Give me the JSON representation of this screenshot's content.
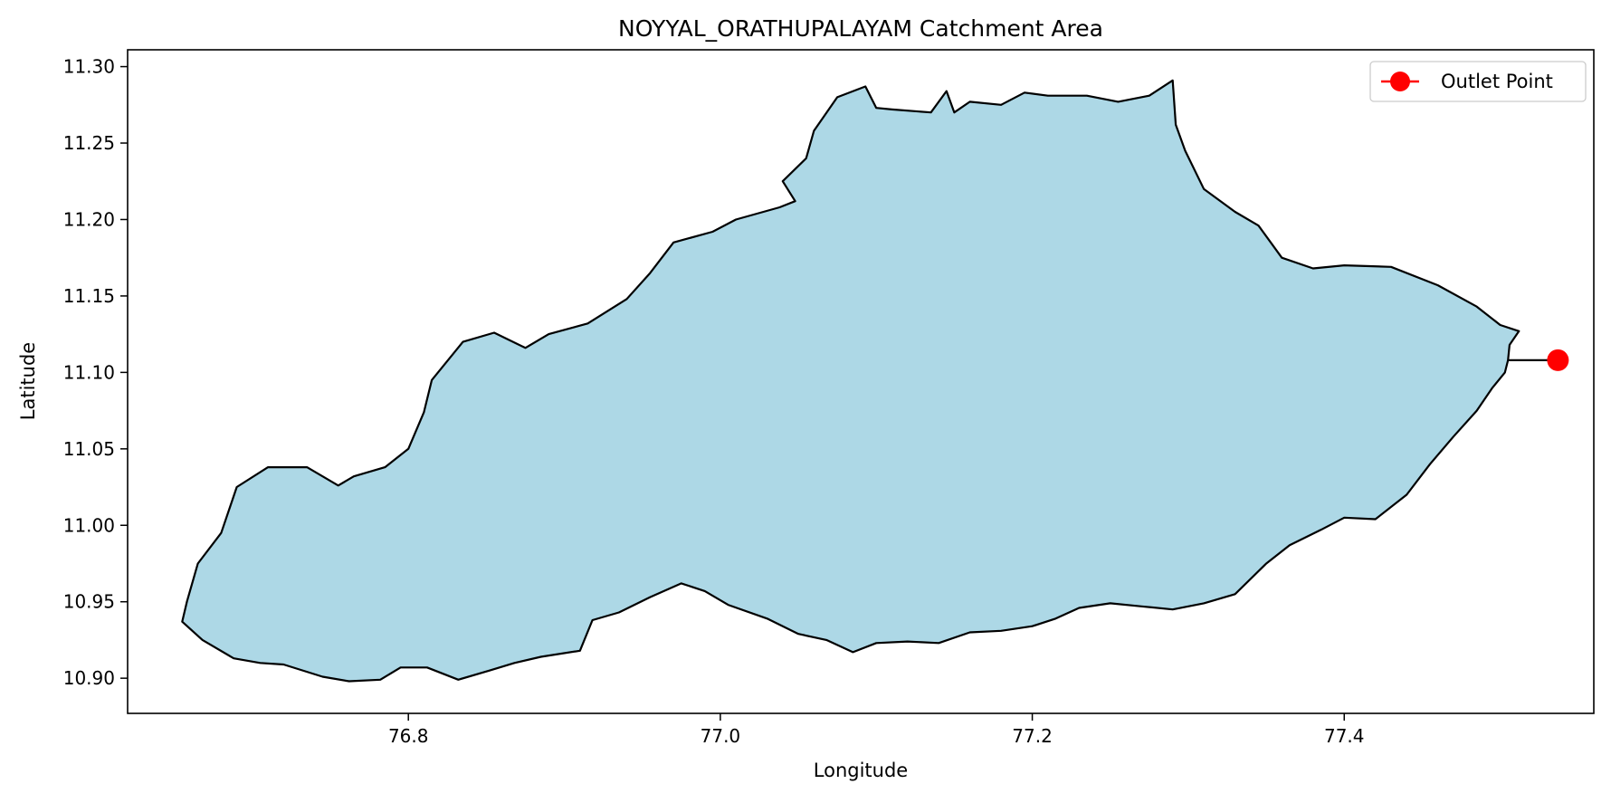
{
  "chart_data": {
    "type": "map",
    "title": "NOYYAL_ORATHUPALAYAM Catchment Area",
    "xlabel": "Longitude",
    "ylabel": "Latitude",
    "xlim": [
      76.62,
      77.56
    ],
    "ylim": [
      10.877,
      11.311
    ],
    "xticks": [
      76.8,
      77.0,
      77.2,
      77.4
    ],
    "xtick_labels": [
      "76.8",
      "77.0",
      "77.2",
      "77.4"
    ],
    "yticks": [
      10.9,
      10.95,
      11.0,
      11.05,
      11.1,
      11.15,
      11.2,
      11.25,
      11.3
    ],
    "ytick_labels": [
      "10.90",
      "10.95",
      "11.00",
      "11.05",
      "11.10",
      "11.15",
      "11.20",
      "11.25",
      "11.30"
    ],
    "grid": false,
    "legend": {
      "position": "top-right",
      "entries": [
        "Outlet Point"
      ]
    },
    "colors": {
      "catchment_fill": "#add8e6",
      "catchment_edge": "#000000",
      "outlet": "#ff0000"
    },
    "catchment_boundary": [
      [
        76.655,
        10.937
      ],
      [
        76.668,
        10.925
      ],
      [
        76.688,
        10.913
      ],
      [
        76.705,
        10.91
      ],
      [
        76.72,
        10.909
      ],
      [
        76.745,
        10.901
      ],
      [
        76.762,
        10.898
      ],
      [
        76.782,
        10.899
      ],
      [
        76.795,
        10.907
      ],
      [
        76.812,
        10.907
      ],
      [
        76.832,
        10.899
      ],
      [
        76.852,
        10.905
      ],
      [
        76.868,
        10.91
      ],
      [
        76.885,
        10.914
      ],
      [
        76.91,
        10.918
      ],
      [
        76.918,
        10.938
      ],
      [
        76.935,
        10.943
      ],
      [
        76.955,
        10.953
      ],
      [
        76.975,
        10.962
      ],
      [
        76.99,
        10.957
      ],
      [
        77.005,
        10.948
      ],
      [
        77.03,
        10.939
      ],
      [
        77.05,
        10.929
      ],
      [
        77.068,
        10.925
      ],
      [
        77.085,
        10.917
      ],
      [
        77.1,
        10.923
      ],
      [
        77.12,
        10.924
      ],
      [
        77.14,
        10.923
      ],
      [
        77.16,
        10.93
      ],
      [
        77.18,
        10.931
      ],
      [
        77.2,
        10.934
      ],
      [
        77.215,
        10.939
      ],
      [
        77.23,
        10.946
      ],
      [
        77.25,
        10.949
      ],
      [
        77.27,
        10.947
      ],
      [
        77.29,
        10.945
      ],
      [
        77.31,
        10.949
      ],
      [
        77.33,
        10.955
      ],
      [
        77.35,
        10.975
      ],
      [
        77.365,
        10.987
      ],
      [
        77.385,
        10.997
      ],
      [
        77.4,
        11.005
      ],
      [
        77.42,
        11.004
      ],
      [
        77.44,
        11.02
      ],
      [
        77.455,
        11.04
      ],
      [
        77.47,
        11.058
      ],
      [
        77.485,
        11.075
      ],
      [
        77.495,
        11.09
      ],
      [
        77.503,
        11.1
      ],
      [
        77.505,
        11.108
      ],
      [
        77.506,
        11.118
      ],
      [
        77.512,
        11.127
      ],
      [
        77.5,
        11.131
      ],
      [
        77.485,
        11.143
      ],
      [
        77.46,
        11.157
      ],
      [
        77.43,
        11.169
      ],
      [
        77.4,
        11.17
      ],
      [
        77.38,
        11.168
      ],
      [
        77.36,
        11.175
      ],
      [
        77.345,
        11.196
      ],
      [
        77.33,
        11.205
      ],
      [
        77.31,
        11.22
      ],
      [
        77.298,
        11.245
      ],
      [
        77.292,
        11.262
      ],
      [
        77.29,
        11.291
      ],
      [
        77.275,
        11.281
      ],
      [
        77.255,
        11.277
      ],
      [
        77.235,
        11.281
      ],
      [
        77.21,
        11.281
      ],
      [
        77.195,
        11.283
      ],
      [
        77.18,
        11.275
      ],
      [
        77.16,
        11.277
      ],
      [
        77.15,
        11.27
      ],
      [
        77.145,
        11.284
      ],
      [
        77.135,
        11.27
      ],
      [
        77.11,
        11.272
      ],
      [
        77.1,
        11.273
      ],
      [
        77.093,
        11.287
      ],
      [
        77.075,
        11.28
      ],
      [
        77.06,
        11.258
      ],
      [
        77.055,
        11.24
      ],
      [
        77.04,
        11.225
      ],
      [
        77.048,
        11.212
      ],
      [
        77.038,
        11.208
      ],
      [
        77.01,
        11.2
      ],
      [
        76.995,
        11.192
      ],
      [
        76.97,
        11.185
      ],
      [
        76.955,
        11.165
      ],
      [
        76.94,
        11.148
      ],
      [
        76.915,
        11.132
      ],
      [
        76.89,
        11.125
      ],
      [
        76.875,
        11.116
      ],
      [
        76.855,
        11.126
      ],
      [
        76.835,
        11.12
      ],
      [
        76.815,
        11.095
      ],
      [
        76.81,
        11.074
      ],
      [
        76.8,
        11.05
      ],
      [
        76.785,
        11.038
      ],
      [
        76.765,
        11.032
      ],
      [
        76.755,
        11.026
      ],
      [
        76.735,
        11.038
      ],
      [
        76.71,
        11.038
      ],
      [
        76.69,
        11.025
      ],
      [
        76.68,
        10.995
      ],
      [
        76.665,
        10.975
      ],
      [
        76.658,
        10.95
      ],
      [
        76.655,
        10.937
      ]
    ],
    "outlet_line": [
      [
        77.505,
        11.108
      ],
      [
        77.537,
        11.108
      ]
    ],
    "outlet_point": [
      77.537,
      11.108
    ]
  }
}
